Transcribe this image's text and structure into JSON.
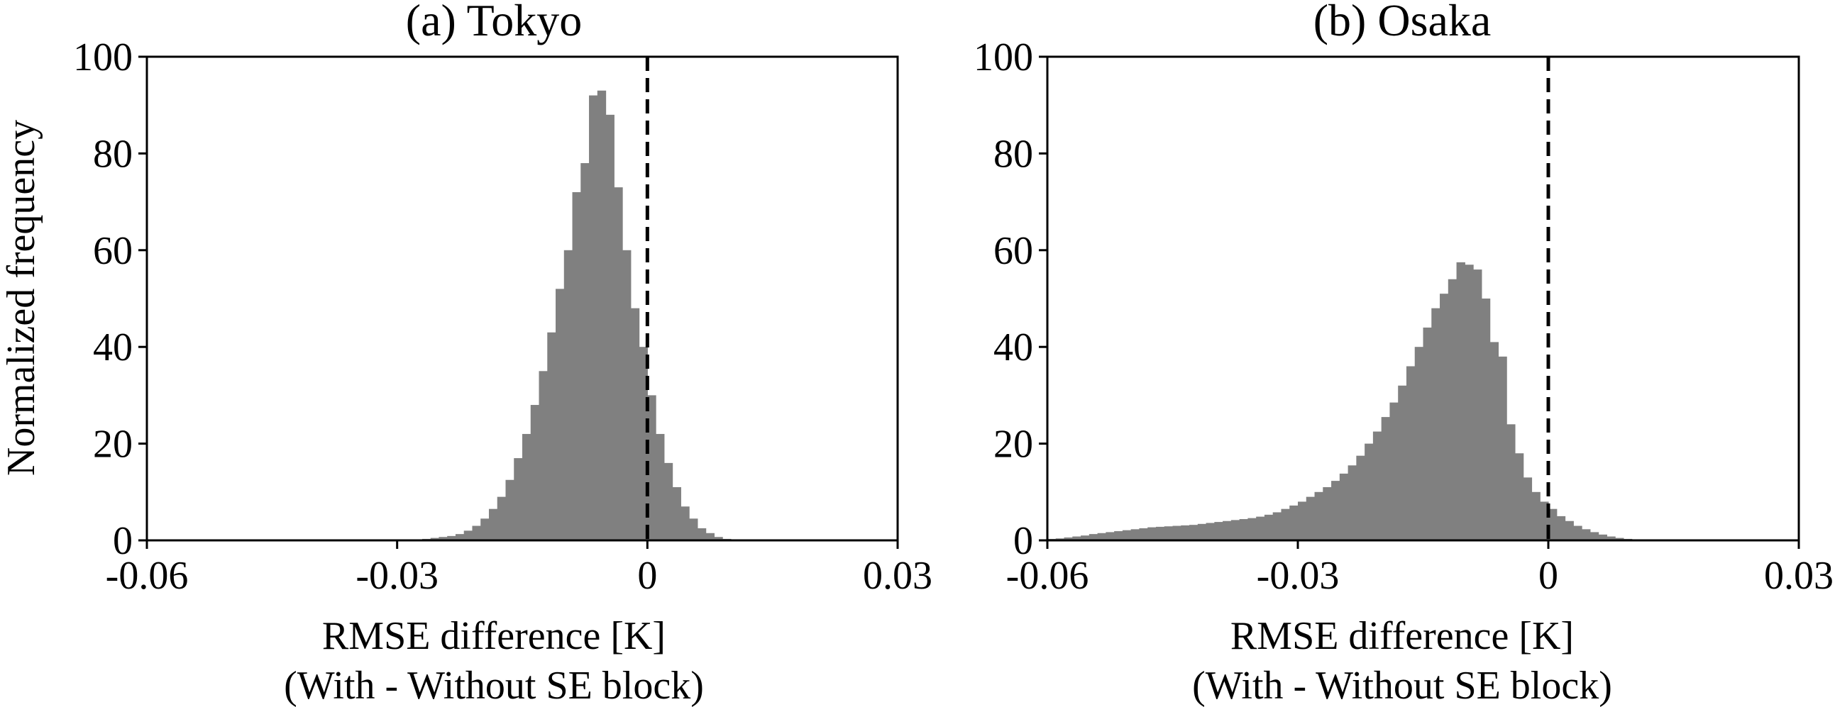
{
  "chart_data": [
    {
      "type": "bar",
      "title": "(a) Tokyo",
      "xlabel": [
        "RMSE difference [K]",
        "(With - Without SE block)"
      ],
      "ylabel": "Normalized frequency",
      "xlim": [
        -0.06,
        0.03
      ],
      "ylim": [
        0,
        100
      ],
      "xticks": [
        "-0.06",
        "-0.03",
        "0",
        "0.03"
      ],
      "yticks": [
        "0",
        "20",
        "40",
        "60",
        "80",
        "100"
      ],
      "reference_line": {
        "x": 0,
        "style": "dashed",
        "color": "#000000"
      },
      "bar_color": "#808080",
      "bin_width": 0.001,
      "bin_start": -0.03,
      "values": [
        0.1,
        0.1,
        0.2,
        0.3,
        0.5,
        0.7,
        0.9,
        1.3,
        2,
        3,
        4.5,
        6.5,
        9,
        12.5,
        17,
        22,
        28,
        35,
        43,
        52,
        60,
        72,
        78,
        92,
        93,
        88,
        73,
        60,
        48,
        40,
        30,
        22,
        16,
        11,
        7,
        4.5,
        2.5,
        1.5,
        0.7,
        0.3,
        0.1
      ]
    },
    {
      "type": "bar",
      "title": "(b) Osaka",
      "xlabel": [
        "RMSE difference [K]",
        "(With - Without SE block)"
      ],
      "ylabel": "",
      "xlim": [
        -0.06,
        0.03
      ],
      "ylim": [
        0,
        100
      ],
      "xticks": [
        "-0.06",
        "-0.03",
        "0",
        "0.03"
      ],
      "yticks": [
        "0",
        "20",
        "40",
        "60",
        "80",
        "100"
      ],
      "reference_line": {
        "x": 0,
        "style": "dashed",
        "color": "#000000"
      },
      "bar_color": "#808080",
      "bin_width": 0.001,
      "bin_start": -0.06,
      "values": [
        0.3,
        0.4,
        0.6,
        0.8,
        1,
        1.3,
        1.5,
        1.7,
        1.9,
        2.1,
        2.3,
        2.5,
        2.7,
        2.8,
        2.9,
        3,
        3.1,
        3.2,
        3.4,
        3.6,
        3.8,
        4,
        4.2,
        4.4,
        4.6,
        4.9,
        5.3,
        5.8,
        6.5,
        7.2,
        8,
        9,
        10,
        11,
        12.3,
        13.8,
        15.5,
        17.5,
        20,
        22.5,
        25.5,
        28.5,
        32,
        36,
        40,
        44,
        48,
        51,
        54,
        57.5,
        57,
        56,
        50,
        41,
        38,
        24,
        18,
        13,
        10,
        8,
        6.5,
        5,
        4,
        3,
        2.3,
        1.7,
        1.2,
        0.8,
        0.5,
        0.3,
        0.2,
        0.1
      ]
    }
  ]
}
